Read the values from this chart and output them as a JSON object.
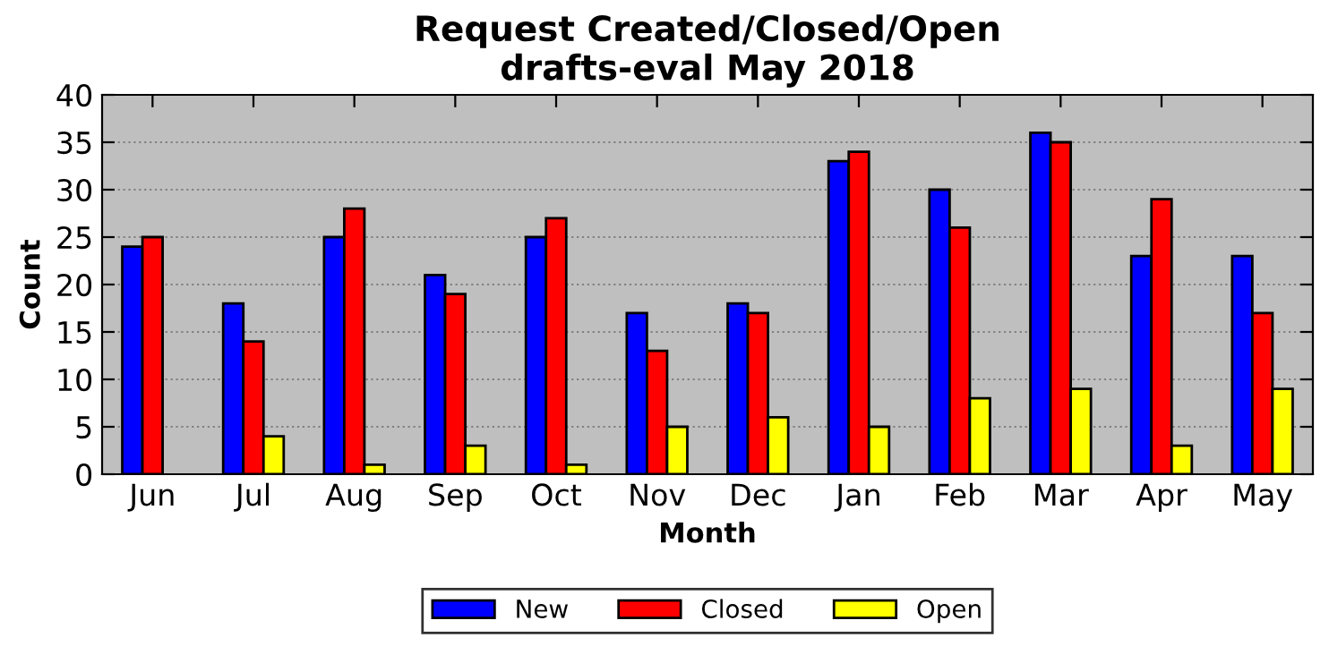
{
  "chart_data": {
    "type": "bar",
    "title": "Request Created/Closed/Open\ndrafts-eval May 2018",
    "xlabel": "Month",
    "ylabel": "Count",
    "categories": [
      "Jun",
      "Jul",
      "Aug",
      "Sep",
      "Oct",
      "Nov",
      "Dec",
      "Jan",
      "Feb",
      "Mar",
      "Apr",
      "May"
    ],
    "series": [
      {
        "name": "New",
        "color": "#0000ff",
        "values": [
          24,
          18,
          25,
          21,
          25,
          17,
          18,
          33,
          30,
          36,
          23,
          23
        ]
      },
      {
        "name": "Closed",
        "color": "#ff0000",
        "values": [
          25,
          14,
          28,
          19,
          27,
          13,
          17,
          34,
          26,
          35,
          29,
          17
        ]
      },
      {
        "name": "Open",
        "color": "#ffff00",
        "values": [
          0,
          4,
          1,
          3,
          1,
          5,
          6,
          5,
          8,
          9,
          3,
          9
        ]
      }
    ],
    "ylim": [
      0,
      40
    ],
    "yticks": [
      0,
      5,
      10,
      15,
      20,
      25,
      30,
      35,
      40
    ],
    "grid": "y",
    "legend": "bottom"
  }
}
